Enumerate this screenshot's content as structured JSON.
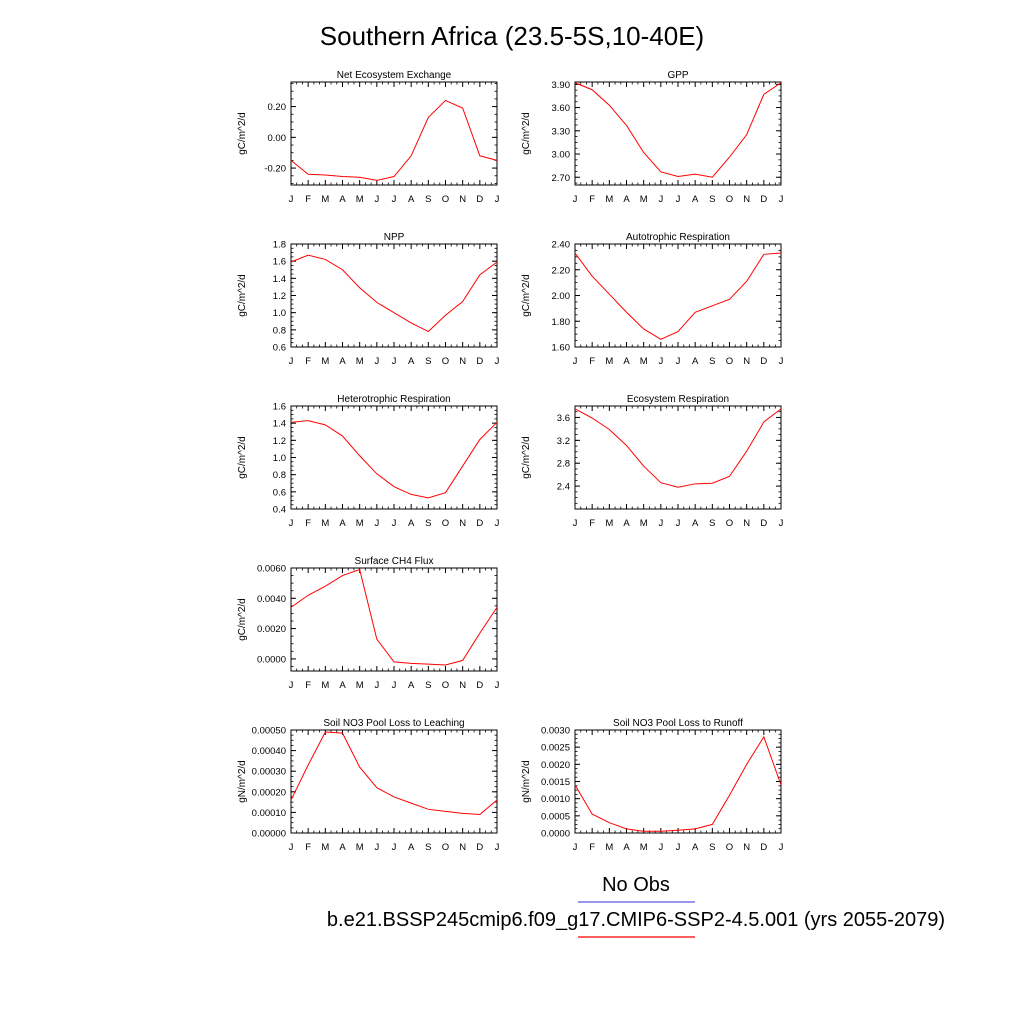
{
  "figure": {
    "title": "Southern Africa (23.5-5S,10-40E)",
    "legend": [
      {
        "label": "No Obs",
        "color": "#5b5bd6"
      },
      {
        "label": "b.e21.BSSP245cmip6.f09_g17.CMIP6-SSP2-4.5.001 (yrs 2055-2079)",
        "color": "#ff0000"
      }
    ]
  },
  "chart_data": [
    {
      "type": "line",
      "title": "Net Ecosystem Exchange",
      "ylabel": "gC/m^2/d",
      "ylim": [
        -0.31,
        0.36
      ],
      "yticks": [
        -0.2,
        0.0,
        0.2
      ],
      "ytick_labels": [
        "-0.20",
        "0.00",
        "0.20"
      ],
      "categories": [
        "J",
        "F",
        "M",
        "A",
        "M",
        "J",
        "J",
        "A",
        "S",
        "O",
        "N",
        "D",
        "J"
      ],
      "series": [
        {
          "color": "#ff0000",
          "values": [
            -0.15,
            -0.24,
            -0.245,
            -0.255,
            -0.26,
            -0.28,
            -0.255,
            -0.12,
            0.13,
            0.24,
            0.19,
            -0.12,
            -0.15
          ]
        }
      ]
    },
    {
      "type": "line",
      "title": "GPP",
      "ylabel": "gC/m^2/d",
      "ylim": [
        2.6,
        3.93
      ],
      "yticks": [
        2.7,
        3.0,
        3.3,
        3.6,
        3.9
      ],
      "ytick_labels": [
        "2.70",
        "3.00",
        "3.30",
        "3.60",
        "3.90"
      ],
      "categories": [
        "J",
        "F",
        "M",
        "A",
        "M",
        "J",
        "J",
        "A",
        "S",
        "O",
        "N",
        "D",
        "J"
      ],
      "series": [
        {
          "color": "#ff0000",
          "values": [
            3.92,
            3.83,
            3.63,
            3.37,
            3.02,
            2.77,
            2.71,
            2.74,
            2.7,
            2.96,
            3.25,
            3.77,
            3.92
          ]
        }
      ]
    },
    {
      "type": "line",
      "title": "NPP",
      "ylabel": "gC/m^2/d",
      "ylim": [
        0.6,
        1.8
      ],
      "yticks": [
        0.6,
        0.8,
        1.0,
        1.2,
        1.4,
        1.6,
        1.8
      ],
      "ytick_labels": [
        "0.6",
        "0.8",
        "1.0",
        "1.2",
        "1.4",
        "1.6",
        "1.8"
      ],
      "categories": [
        "J",
        "F",
        "M",
        "A",
        "M",
        "J",
        "J",
        "A",
        "S",
        "O",
        "N",
        "D",
        "J"
      ],
      "series": [
        {
          "color": "#ff0000",
          "values": [
            1.59,
            1.67,
            1.62,
            1.5,
            1.29,
            1.12,
            1.0,
            0.88,
            0.78,
            0.97,
            1.13,
            1.44,
            1.59
          ]
        }
      ]
    },
    {
      "type": "line",
      "title": "Autotrophic Respiration",
      "ylabel": "gC/m^2/d",
      "ylim": [
        1.6,
        2.4
      ],
      "yticks": [
        1.6,
        1.8,
        2.0,
        2.2,
        2.4
      ],
      "ytick_labels": [
        "1.60",
        "1.80",
        "2.00",
        "2.20",
        "2.40"
      ],
      "categories": [
        "J",
        "F",
        "M",
        "A",
        "M",
        "J",
        "J",
        "A",
        "S",
        "O",
        "N",
        "D",
        "J"
      ],
      "series": [
        {
          "color": "#ff0000",
          "values": [
            2.33,
            2.15,
            2.01,
            1.87,
            1.74,
            1.66,
            1.72,
            1.87,
            1.92,
            1.97,
            2.11,
            2.32,
            2.33
          ]
        }
      ]
    },
    {
      "type": "line",
      "title": "Heterotrophic Respiration",
      "ylabel": "gC/m^2/d",
      "ylim": [
        0.4,
        1.6
      ],
      "yticks": [
        0.4,
        0.6,
        0.8,
        1.0,
        1.2,
        1.4,
        1.6
      ],
      "ytick_labels": [
        "0.4",
        "0.6",
        "0.8",
        "1.0",
        "1.2",
        "1.4",
        "1.6"
      ],
      "categories": [
        "J",
        "F",
        "M",
        "A",
        "M",
        "J",
        "J",
        "A",
        "S",
        "O",
        "N",
        "D",
        "J"
      ],
      "series": [
        {
          "color": "#ff0000",
          "values": [
            1.41,
            1.43,
            1.38,
            1.25,
            1.02,
            0.81,
            0.66,
            0.57,
            0.53,
            0.59,
            0.9,
            1.21,
            1.41
          ]
        }
      ]
    },
    {
      "type": "line",
      "title": "Ecosystem Respiration",
      "ylabel": "gC/m^2/d",
      "ylim": [
        2.0,
        3.8
      ],
      "yticks": [
        2.4,
        2.8,
        3.2,
        3.6
      ],
      "ytick_labels": [
        "2.4",
        "2.8",
        "3.2",
        "3.6"
      ],
      "categories": [
        "J",
        "F",
        "M",
        "A",
        "M",
        "J",
        "J",
        "A",
        "S",
        "O",
        "N",
        "D",
        "J"
      ],
      "series": [
        {
          "color": "#ff0000",
          "values": [
            3.75,
            3.59,
            3.39,
            3.11,
            2.75,
            2.46,
            2.38,
            2.44,
            2.45,
            2.57,
            3.01,
            3.52,
            3.75
          ]
        }
      ]
    },
    {
      "type": "line",
      "title": "Surface CH4 Flux",
      "ylabel": "gC/m^2/d",
      "ylim": [
        -0.0008,
        0.006
      ],
      "yticks": [
        0.0,
        0.002,
        0.004,
        0.006
      ],
      "ytick_labels": [
        "0.0000",
        "0.0020",
        "0.0040",
        "0.0060"
      ],
      "categories": [
        "J",
        "F",
        "M",
        "A",
        "M",
        "J",
        "J",
        "A",
        "S",
        "O",
        "N",
        "D",
        "J"
      ],
      "series": [
        {
          "color": "#ff0000",
          "values": [
            0.0034,
            0.0042,
            0.0048,
            0.0055,
            0.0059,
            0.0013,
            -0.0002,
            -0.0003,
            -0.00035,
            -0.0004,
            -0.0001,
            0.0017,
            0.0034
          ]
        }
      ]
    },
    {
      "type": "line",
      "title": "Soil NO3 Pool Loss to Leaching",
      "ylabel": "gN/m^2/d",
      "ylim": [
        0.0,
        0.0005
      ],
      "yticks": [
        0.0,
        0.0001,
        0.0002,
        0.0003,
        0.0004,
        0.0005
      ],
      "ytick_labels": [
        "0.00000",
        "0.00010",
        "0.00020",
        "0.00030",
        "0.00040",
        "0.00050"
      ],
      "categories": [
        "J",
        "F",
        "M",
        "A",
        "M",
        "J",
        "J",
        "A",
        "S",
        "O",
        "N",
        "D",
        "J"
      ],
      "series": [
        {
          "color": "#ff0000",
          "values": [
            0.00016,
            0.00033,
            0.00049,
            0.000485,
            0.00032,
            0.00022,
            0.000175,
            0.000145,
            0.000115,
            0.000105,
            9.5e-05,
            9e-05,
            0.00016
          ]
        }
      ]
    },
    {
      "type": "line",
      "title": "Soil NO3 Pool Loss to Runoff",
      "ylabel": "gN/m^2/d",
      "ylim": [
        0.0,
        0.003
      ],
      "yticks": [
        0.0,
        0.0005,
        0.001,
        0.0015,
        0.002,
        0.0025,
        0.003
      ],
      "ytick_labels": [
        "0.0000",
        "0.0005",
        "0.0010",
        "0.0015",
        "0.0020",
        "0.0025",
        "0.0030"
      ],
      "categories": [
        "J",
        "F",
        "M",
        "A",
        "M",
        "J",
        "J",
        "A",
        "S",
        "O",
        "N",
        "D",
        "J"
      ],
      "series": [
        {
          "color": "#ff0000",
          "values": [
            0.0014,
            0.00055,
            0.0003,
            0.00012,
            5e-05,
            5e-05,
            8e-05,
            0.00012,
            0.00025,
            0.0011,
            0.002,
            0.0028,
            0.0014
          ]
        }
      ]
    }
  ]
}
